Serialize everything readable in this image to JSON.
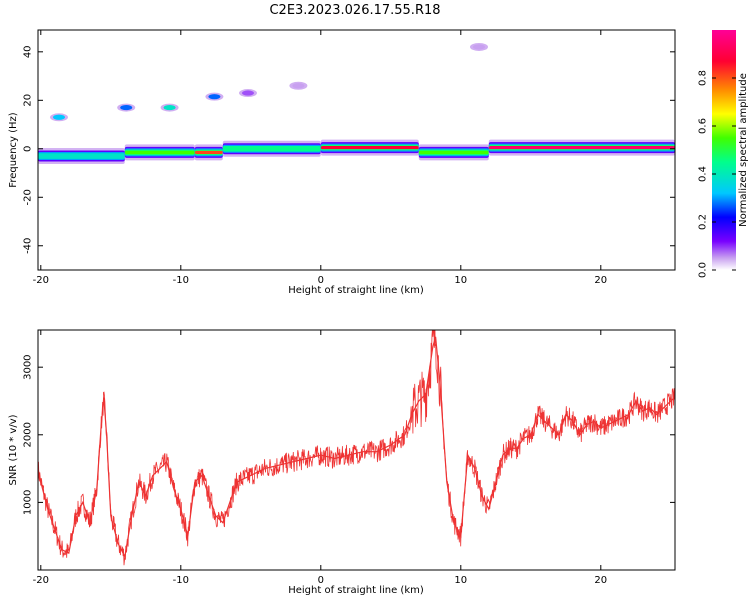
{
  "figure_title": "C2E3.2023.026.17.55.R18",
  "chart_data": [
    {
      "type": "heatmap",
      "title": "C2E3.2023.026.17.55.R18",
      "xlabel": "Height of straight line (km)",
      "ylabel": "Frequency (Hz)",
      "xlim": [
        -20.2,
        25.3
      ],
      "ylim": [
        -50,
        49
      ],
      "xticks": [
        -20,
        -10,
        0,
        10,
        20
      ],
      "yticks": [
        -40,
        -20,
        0,
        20,
        40
      ],
      "grid": false,
      "colorbar": {
        "label": "Normalized spectral amplitude",
        "range": [
          0,
          1
        ],
        "ticks": [
          "0.0",
          "0.2",
          "0.4",
          "0.6",
          "0.8"
        ],
        "colors": [
          "#ffffff",
          "#c8a0f0",
          "#7800ff",
          "#0000ff",
          "#00c8ff",
          "#00ff8c",
          "#40ff00",
          "#ffff00",
          "#ff8c00",
          "#ff0032",
          "#ff0096"
        ]
      },
      "ridge": {
        "description": "main spectral ridge near 0 Hz",
        "segments": [
          {
            "x_start": -20.2,
            "x_end": -14,
            "freq": -3,
            "amplitude": 0.45
          },
          {
            "x_start": -14,
            "x_end": -9,
            "freq": -1.5,
            "amplitude": 0.6
          },
          {
            "x_start": -9,
            "x_end": -7,
            "freq": -1.5,
            "amplitude": 0.85
          },
          {
            "x_start": -7,
            "x_end": 0,
            "freq": 0,
            "amplitude": 0.5
          },
          {
            "x_start": 0,
            "x_end": 7,
            "freq": 0.5,
            "amplitude": 0.9
          },
          {
            "x_start": 7,
            "x_end": 12,
            "freq": -1.5,
            "amplitude": 0.6
          },
          {
            "x_start": 12,
            "x_end": 25.3,
            "freq": 0.5,
            "amplitude": 0.95
          }
        ]
      },
      "blobs": [
        {
          "x": -18.7,
          "freq": 13,
          "amplitude": 0.4
        },
        {
          "x": -13.9,
          "freq": 17,
          "amplitude": 0.35
        },
        {
          "x": -10.8,
          "freq": 17,
          "amplitude": 0.45
        },
        {
          "x": -7.6,
          "freq": 21.5,
          "amplitude": 0.35
        },
        {
          "x": -5.2,
          "freq": 23,
          "amplitude": 0.15
        },
        {
          "x": -1.6,
          "freq": 26,
          "amplitude": 0.1
        },
        {
          "x": 11.3,
          "freq": 42,
          "amplitude": 0.1
        }
      ]
    },
    {
      "type": "line",
      "xlabel": "Height of straight line (km)",
      "ylabel": "SNR (10 * v/v)",
      "xlim": [
        -20.2,
        25.3
      ],
      "ylim": [
        0,
        3550
      ],
      "xticks": [
        -20,
        -10,
        0,
        10,
        20
      ],
      "yticks": [
        1000,
        2000,
        3000
      ],
      "grid": false,
      "color": "#ee3333",
      "series": [
        {
          "x": [
            -20.2,
            -20,
            -19.5,
            -19,
            -18.5,
            -18,
            -17.5,
            -17,
            -16.5,
            -16,
            -15.7,
            -15.5,
            -15.3,
            -15,
            -14.5,
            -14,
            -13.5,
            -13,
            -12.5,
            -12,
            -11.5,
            -11,
            -10.5,
            -10,
            -9.5,
            -9,
            -8.5,
            -8,
            -7.5,
            -7,
            -6,
            -5,
            -4,
            -3,
            -2,
            -1,
            0,
            1,
            2,
            3,
            4,
            5,
            6,
            6.5,
            7,
            7.5,
            8,
            8.2,
            8.5,
            9,
            9.5,
            10,
            10.5,
            11,
            11.5,
            12,
            12.5,
            13,
            13.5,
            14,
            14.5,
            15,
            15.5,
            16,
            16.5,
            17,
            17.5,
            18,
            18.5,
            19,
            19.5,
            20,
            21,
            22,
            22.5,
            23,
            23.5,
            24,
            24.5,
            25,
            25.3
          ],
          "y": [
            1500,
            1300,
            900,
            600,
            300,
            250,
            800,
            1000,
            700,
            1200,
            2100,
            2550,
            2000,
            800,
            400,
            200,
            800,
            1300,
            1100,
            1400,
            1500,
            1600,
            1200,
            900,
            500,
            1300,
            1400,
            1100,
            800,
            700,
            1300,
            1400,
            1500,
            1550,
            1600,
            1650,
            1700,
            1650,
            1700,
            1750,
            1750,
            1850,
            2000,
            2300,
            2500,
            2600,
            3300,
            3450,
            2800,
            1300,
            700,
            500,
            1700,
            1500,
            1100,
            900,
            1300,
            1700,
            1800,
            1800,
            1950,
            2000,
            2300,
            2200,
            2100,
            2000,
            2300,
            2200,
            2000,
            2150,
            2200,
            2100,
            2200,
            2300,
            2500,
            2350,
            2400,
            2300,
            2400,
            2500,
            2550
          ]
        }
      ]
    }
  ]
}
